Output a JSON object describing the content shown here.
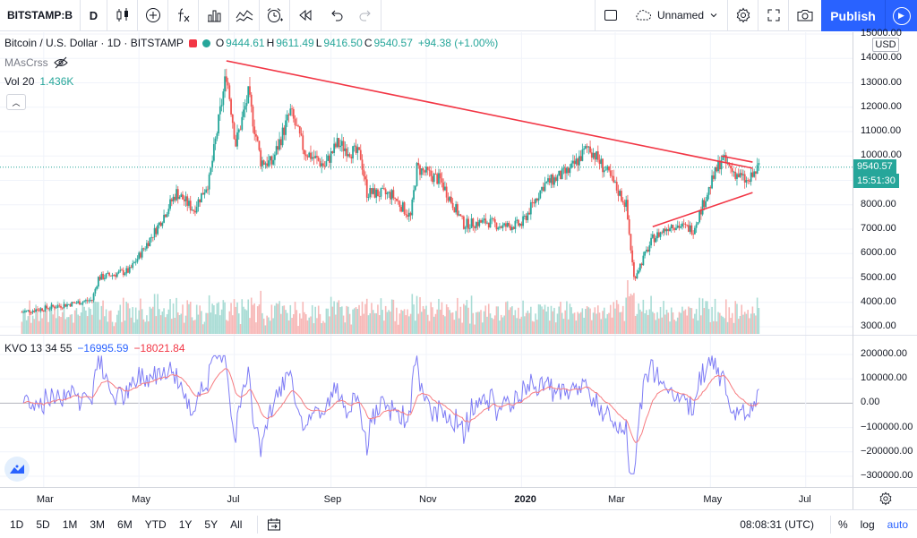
{
  "toolbar": {
    "symbol": "BITSTAMP:B",
    "interval": "D",
    "layout_name": "Unnamed",
    "publish_label": "Publish",
    "icons": [
      "candles-icon",
      "add-indicator-icon",
      "fx-icon",
      "bars-compare-icon",
      "indicators-icon",
      "alert-icon",
      "replay-icon",
      "undo-icon",
      "redo-icon",
      "layout-square-icon",
      "cloud-icon",
      "gear-icon",
      "fullscreen-icon",
      "camera-icon",
      "play-icon"
    ]
  },
  "legend": {
    "title": "Bitcoin / U.S. Dollar · 1D · BITSTAMP",
    "open_label": "O",
    "open": "9444.61",
    "high_label": "H",
    "high": "9611.49",
    "low_label": "L",
    "low": "9416.50",
    "close_label": "C",
    "close": "9540.57",
    "change": "+94.38 (+1.00%)",
    "indicator_ma": "MAsCrss",
    "vol_label": "Vol 20",
    "vol_value": "1.436K"
  },
  "kvo": {
    "label": "KVO 13 34 55",
    "value1": "−16995.59",
    "value2": "−18021.84"
  },
  "price_axis": {
    "currency": "USD",
    "ticks": [
      "15000.00",
      "14000.00",
      "13000.00",
      "12000.00",
      "11000.00",
      "10000.00",
      "9000.00",
      "8000.00",
      "7000.00",
      "6000.00",
      "5000.00",
      "4000.00",
      "3000.00"
    ],
    "last_price": "9540.57",
    "countdown": "15:51:30"
  },
  "kvo_axis": {
    "ticks": [
      "200000.00",
      "100000.00",
      "0.00",
      "−100000.00",
      "−200000.00",
      "−300000.00"
    ]
  },
  "time_axis": [
    "Mar",
    "May",
    "Jul",
    "Sep",
    "Nov",
    "2020",
    "Mar",
    "May",
    "Jul"
  ],
  "bottom": {
    "ranges": [
      "1D",
      "5D",
      "1M",
      "3M",
      "6M",
      "YTD",
      "1Y",
      "5Y",
      "All"
    ],
    "clock": "08:08:31 (UTC)",
    "percent": "%",
    "log": "log",
    "auto": "auto"
  },
  "colors": {
    "up": "#26a69a",
    "down": "#ef5350",
    "trendline": "#f23645",
    "kvo": "#7e7cf5",
    "signal": "#f77c80",
    "accent": "#2962ff"
  },
  "chart_data": {
    "type": "candlestick",
    "x_start": "2019-02",
    "x_end": "2020-07",
    "ylim": [
      3000,
      15000
    ],
    "price_path": [
      [
        "2019-02-15",
        3600
      ],
      [
        "2019-03-15",
        3900
      ],
      [
        "2019-04-01",
        4100
      ],
      [
        "2019-04-05",
        5000
      ],
      [
        "2019-04-25",
        5300
      ],
      [
        "2019-05-12",
        7000
      ],
      [
        "2019-05-25",
        8500
      ],
      [
        "2019-06-05",
        7800
      ],
      [
        "2019-06-15",
        9000
      ],
      [
        "2019-06-26",
        13400
      ],
      [
        "2019-07-02",
        10500
      ],
      [
        "2019-07-10",
        12500
      ],
      [
        "2019-07-18",
        9800
      ],
      [
        "2019-07-25",
        9700
      ],
      [
        "2019-08-06",
        11800
      ],
      [
        "2019-08-15",
        10200
      ],
      [
        "2019-08-28",
        9600
      ],
      [
        "2019-09-05",
        10500
      ],
      [
        "2019-09-20",
        10000
      ],
      [
        "2019-09-24",
        8500
      ],
      [
        "2019-10-10",
        8400
      ],
      [
        "2019-10-22",
        7500
      ],
      [
        "2019-10-26",
        9500
      ],
      [
        "2019-11-10",
        9000
      ],
      [
        "2019-11-25",
        7200
      ],
      [
        "2019-12-10",
        7300
      ],
      [
        "2019-12-20",
        7100
      ],
      [
        "2020-01-01",
        7200
      ],
      [
        "2020-01-15",
        8800
      ],
      [
        "2020-02-01",
        9400
      ],
      [
        "2020-02-13",
        10400
      ],
      [
        "2020-02-25",
        9300
      ],
      [
        "2020-03-08",
        8000
      ],
      [
        "2020-03-13",
        5000
      ],
      [
        "2020-03-25",
        6600
      ],
      [
        "2020-04-06",
        7200
      ],
      [
        "2020-04-20",
        7000
      ],
      [
        "2020-05-01",
        8800
      ],
      [
        "2020-05-08",
        9900
      ],
      [
        "2020-05-15",
        9400
      ],
      [
        "2020-05-25",
        8900
      ],
      [
        "2020-06-01",
        9540
      ]
    ],
    "kvo_ylim": [
      -300000,
      200000
    ],
    "trendlines": [
      {
        "from": [
          "2019-06-26",
          13900
        ],
        "to": [
          "2020-05-28",
          9500
        ]
      },
      {
        "from": [
          "2020-03-25",
          7100
        ],
        "to": [
          "2020-05-28",
          8500
        ]
      },
      {
        "from": [
          "2020-05-08",
          10000
        ],
        "to": [
          "2020-05-28",
          9750
        ]
      }
    ]
  }
}
